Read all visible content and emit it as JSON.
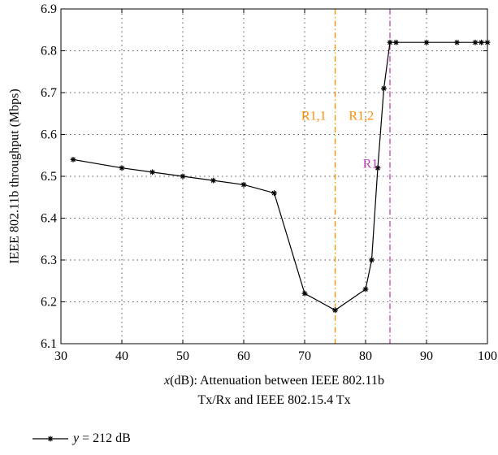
{
  "chart_data": {
    "type": "line",
    "title": "",
    "ylabel": "IEEE 802.11b throughput (Mbps)",
    "xlabel_line1_var": "x",
    "xlabel_line1_rest": "(dB): Attenuation between IEEE 802.11b",
    "xlabel_line2": "Tx/Rx and IEEE 802.15.4 Tx",
    "xlim": [
      30,
      100
    ],
    "ylim": [
      6.1,
      6.9
    ],
    "xticks": [
      "30",
      "40",
      "50",
      "60",
      "70",
      "80",
      "90",
      "100"
    ],
    "yticks": [
      "6.1",
      "6.2",
      "6.3",
      "6.4",
      "6.5",
      "6.6",
      "6.7",
      "6.8",
      "6.9"
    ],
    "grid": true,
    "legend_position": "bottom-left",
    "series": [
      {
        "name_var": "y",
        "name_rest": " = 212 dB",
        "color": "#000000",
        "marker": "asterisk",
        "x": [
          32,
          40,
          45,
          50,
          55,
          60,
          65,
          70,
          75,
          80,
          81,
          82,
          83,
          84,
          85,
          90,
          95,
          98,
          99,
          100
        ],
        "y": [
          6.54,
          6.52,
          6.51,
          6.5,
          6.49,
          6.48,
          6.46,
          6.22,
          6.18,
          6.23,
          6.3,
          6.52,
          6.71,
          6.82,
          6.82,
          6.82,
          6.82,
          6.82,
          6.82,
          6.82
        ]
      }
    ],
    "vlines": [
      {
        "x": 75,
        "color": "#ff8c00",
        "style": "dashdot"
      },
      {
        "x": 84,
        "color": "#c040b0",
        "style": "dashdot"
      }
    ],
    "annotations": [
      {
        "text": "R1,1",
        "x": 71.5,
        "y": 6.635,
        "color": "#ff8c00"
      },
      {
        "text": "R1,2",
        "x": 79.3,
        "y": 6.635,
        "color": "#ff8c00"
      },
      {
        "text": "R1",
        "x": 80.8,
        "y": 6.52,
        "color": "#c040b0"
      }
    ]
  }
}
